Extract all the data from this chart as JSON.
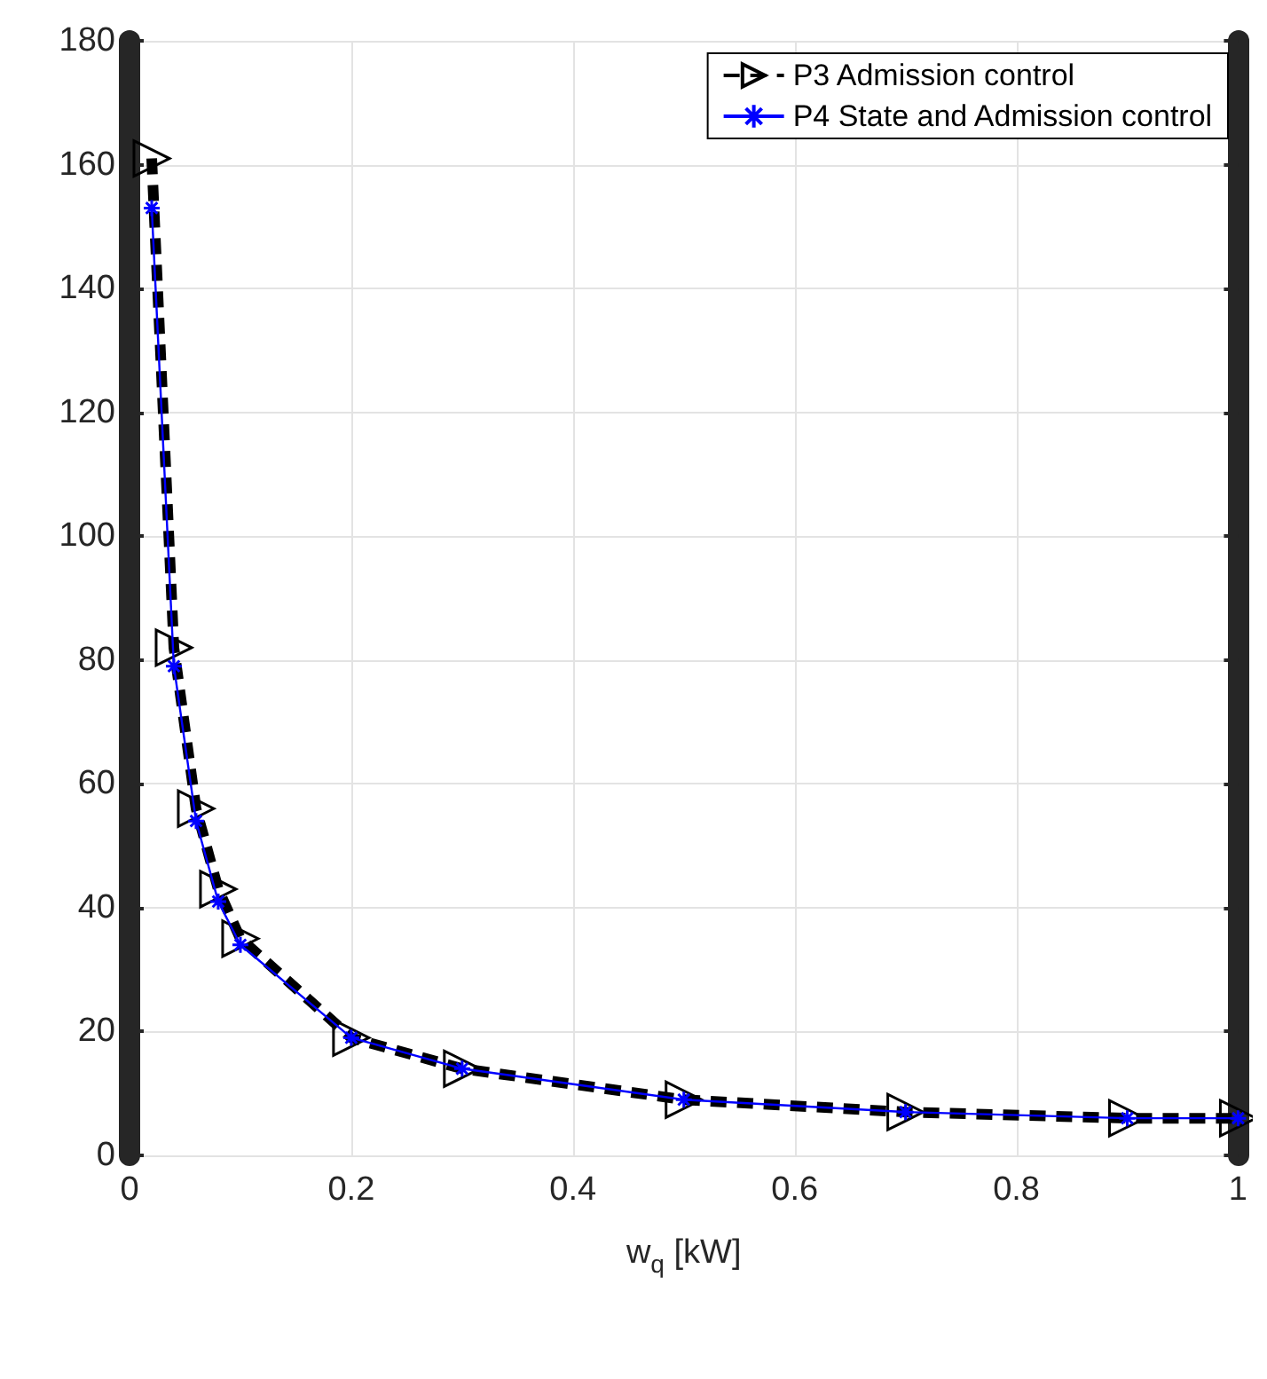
{
  "chart_data": {
    "type": "line",
    "xlabel": "w$_{q}$ [kW]",
    "x": [
      0.02,
      0.04,
      0.06,
      0.08,
      0.1,
      0.2,
      0.3,
      0.5,
      0.7,
      0.9,
      1.0
    ],
    "series": [
      {
        "name": "P3 Admission control",
        "color": "#000000",
        "marker": "triangle",
        "line_style": "dashed",
        "values": [
          161,
          82,
          56,
          43,
          35,
          19,
          14,
          9,
          7,
          6,
          6
        ]
      },
      {
        "name": "P4 State and Admission control",
        "color": "#0000ff",
        "marker": "cross",
        "line_style": "solid",
        "values": [
          153,
          79,
          54,
          41,
          34,
          19,
          14,
          9,
          7,
          6,
          6
        ]
      }
    ],
    "xlim": [
      0,
      1
    ],
    "xticks": [
      0,
      0.2,
      0.4,
      0.6,
      0.8,
      1
    ],
    "ylim": [
      0,
      180
    ],
    "yticks": [
      0,
      20,
      40,
      60,
      80,
      100,
      120,
      140,
      160,
      180
    ],
    "grid": true,
    "legend": "top right"
  }
}
